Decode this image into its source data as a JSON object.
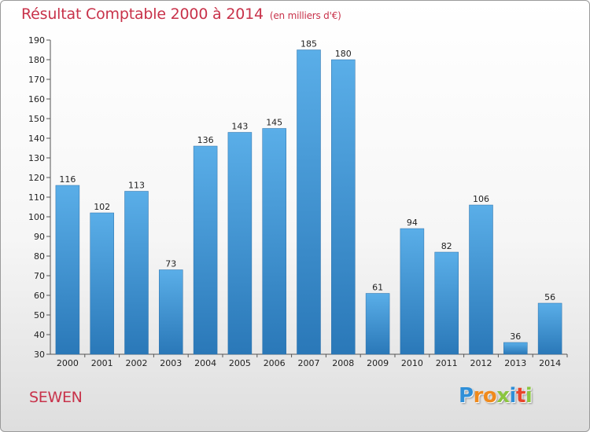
{
  "title": "Résultat Comptable 2000 à 2014",
  "subtitle": "(en milliers d'€)",
  "commune": "SEWEN",
  "logo": {
    "letters": [
      {
        "char": "P",
        "color": "#2f8fd8"
      },
      {
        "char": "r",
        "color": "#f08a1c"
      },
      {
        "char": "o",
        "color": "#f08a1c"
      },
      {
        "char": "x",
        "color": "#8bc53f"
      },
      {
        "char": "i",
        "color": "#2f8fd8"
      },
      {
        "char": "t",
        "color": "#e8452c"
      },
      {
        "char": "i",
        "color": "#8bc53f"
      }
    ]
  },
  "colors": {
    "bar_top": "#5aaee8",
    "bar_bottom": "#2a78b8",
    "title": "#c8324a"
  },
  "chart_data": {
    "type": "bar",
    "title": "Résultat Comptable 2000 à 2014",
    "subtitle": "(en milliers d'€)",
    "xlabel": "",
    "ylabel": "",
    "categories": [
      "2000",
      "2001",
      "2002",
      "2003",
      "2004",
      "2005",
      "2006",
      "2007",
      "2008",
      "2009",
      "2010",
      "2011",
      "2012",
      "2013",
      "2014"
    ],
    "values": [
      116,
      102,
      113,
      73,
      136,
      143,
      145,
      185,
      180,
      61,
      94,
      82,
      106,
      36,
      56
    ],
    "ylim": [
      30,
      190
    ],
    "yticks": [
      30,
      40,
      50,
      60,
      70,
      80,
      90,
      100,
      110,
      120,
      130,
      140,
      150,
      160,
      170,
      180,
      190
    ],
    "grid": false,
    "legend": "none"
  }
}
